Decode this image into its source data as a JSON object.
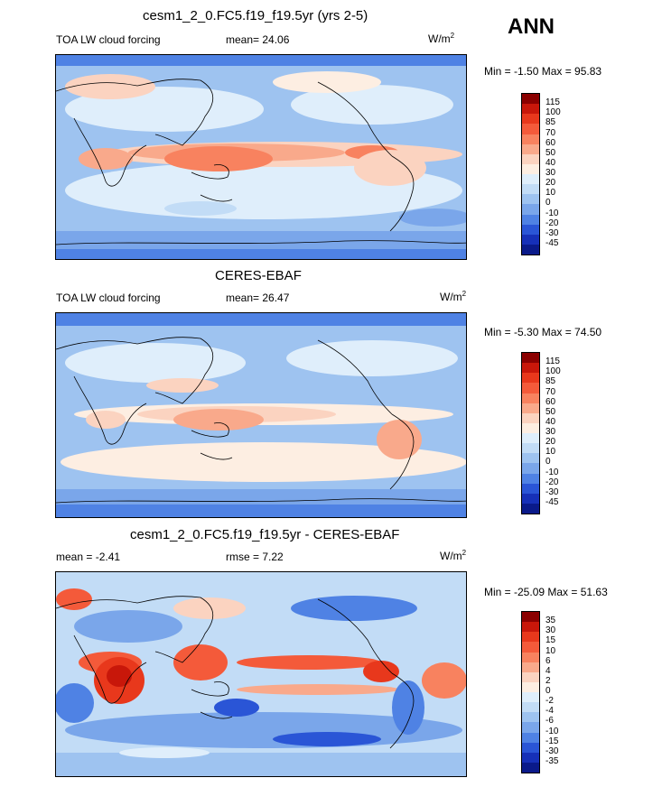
{
  "season": "ANN",
  "panels": [
    {
      "title": "cesm1_2_0.FC5.f19_f19.5yr (yrs 2-5)",
      "left_label": "TOA LW cloud forcing",
      "center_label": "mean=  24.06",
      "units": "W/m",
      "units_sup": "2",
      "minmax": "Min =  -1.50 Max =  95.83",
      "colorbar_labels": [
        "115",
        "100",
        "85",
        "70",
        "60",
        "50",
        "40",
        "30",
        "20",
        "10",
        "0",
        "-10",
        "-20",
        "-30",
        "-45"
      ],
      "colorbar_colors": [
        "#8b0000",
        "#c8170a",
        "#e8381c",
        "#f45a3a",
        "#f8825f",
        "#f9a98b",
        "#fbd3c0",
        "#fdeee2",
        "#dfeefb",
        "#c2dcf6",
        "#9ec3f0",
        "#7aa6ea",
        "#4f82e4",
        "#2a55d6",
        "#1630b8",
        "#0a1a8a"
      ]
    },
    {
      "title": "CERES-EBAF",
      "left_label": "TOA LW cloud forcing",
      "center_label": "mean=  26.47",
      "units": "W/m",
      "units_sup": "2",
      "minmax": "Min =  -5.30 Max =  74.50",
      "colorbar_labels": [
        "115",
        "100",
        "85",
        "70",
        "60",
        "50",
        "40",
        "30",
        "20",
        "10",
        "0",
        "-10",
        "-20",
        "-30",
        "-45"
      ],
      "colorbar_colors": [
        "#8b0000",
        "#c8170a",
        "#e8381c",
        "#f45a3a",
        "#f8825f",
        "#f9a98b",
        "#fbd3c0",
        "#fdeee2",
        "#dfeefb",
        "#c2dcf6",
        "#9ec3f0",
        "#7aa6ea",
        "#4f82e4",
        "#2a55d6",
        "#1630b8",
        "#0a1a8a"
      ]
    },
    {
      "title": "cesm1_2_0.FC5.f19_f19.5yr - CERES-EBAF",
      "left_label": "mean =  -2.41",
      "center_label": "rmse =   7.22",
      "units": "W/m",
      "units_sup": "2",
      "minmax": "Min = -25.09 Max =  51.63",
      "colorbar_labels": [
        "35",
        "30",
        "15",
        "10",
        "6",
        "4",
        "2",
        "0",
        "-2",
        "-4",
        "-6",
        "-10",
        "-15",
        "-30",
        "-35"
      ],
      "colorbar_colors": [
        "#8b0000",
        "#c8170a",
        "#e8381c",
        "#f45a3a",
        "#f8825f",
        "#f9a98b",
        "#fbd3c0",
        "#fdeee2",
        "#dfeefb",
        "#c2dcf6",
        "#9ec3f0",
        "#7aa6ea",
        "#4f82e4",
        "#2a55d6",
        "#1630b8",
        "#0a1a8a"
      ]
    }
  ]
}
